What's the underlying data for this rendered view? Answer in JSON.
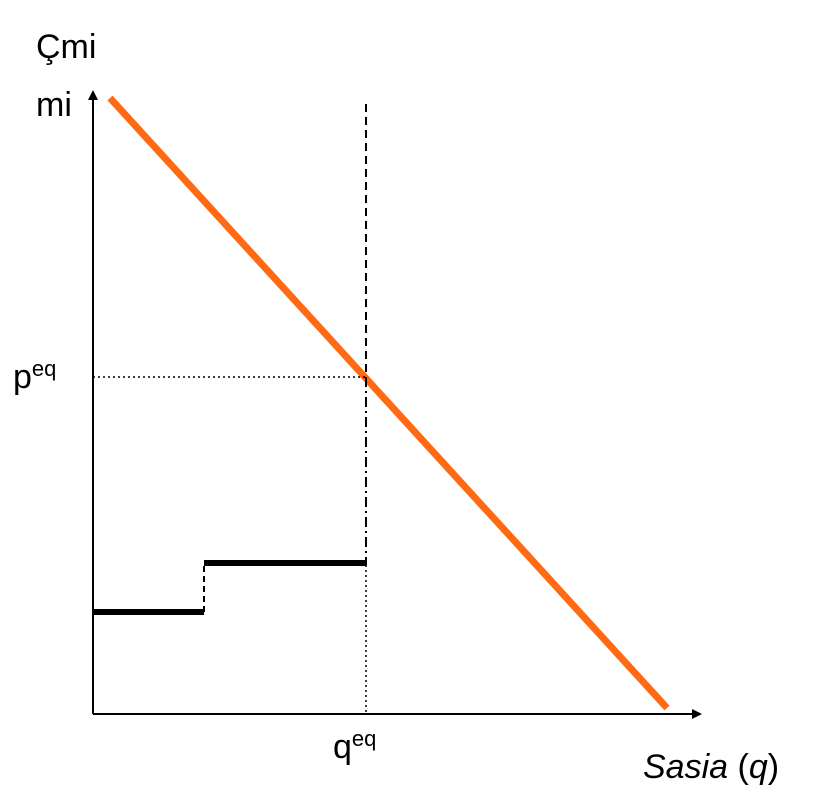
{
  "diagram": {
    "y_axis_label_line1": "Çmi",
    "y_axis_label_line2": "mi",
    "x_axis_label_word": "Sasia",
    "x_axis_label_paren_open": " (",
    "x_axis_label_symbol": "q",
    "x_axis_label_paren_close": ")",
    "price_tick_base": "p",
    "price_tick_sup": "eq",
    "quantity_tick_base": "q",
    "quantity_tick_sup": "eq",
    "colors": {
      "demand_line": "#ff6a13",
      "supply_steps": "#000000",
      "axes": "#000000",
      "background": "#ffffff"
    }
  }
}
